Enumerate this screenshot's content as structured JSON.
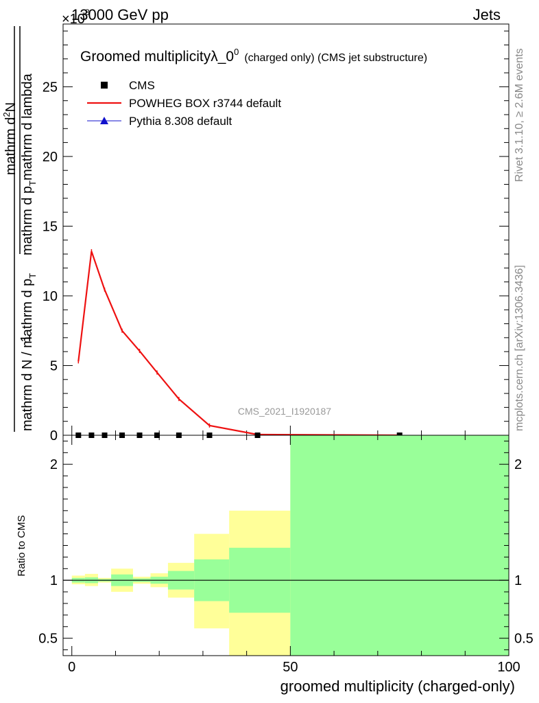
{
  "header": {
    "energy": "13000 GeV pp",
    "scale": "×10",
    "scale_exp": "-3",
    "category": "Jets",
    "rivet": "Rivet 3.1.10, ≥ 2.6M events",
    "site": "mcplots.cern.ch [arXiv:1306.3436]",
    "watermark": "CMS_2021_I1920187"
  },
  "chart_data": [
    {
      "type": "line",
      "title_main": "Groomed multiplicity",
      "title_lambda": "λ_0",
      "title_sup": "0",
      "title_suffix": "(charged only) (CMS jet substructure)",
      "ylabel": {
        "numerator": "1",
        "denominator": "mathrm d N / mathrm d p",
        "denominator_sub": "T",
        "numerator2": "mathrm d",
        "numerator2_sup": "2",
        "numerator2_tail": "N",
        "denominator2": "mathrm d p",
        "denominator2_sub": "T",
        "denominator2_tail": "mathrm d lambda"
      },
      "xlim": [
        -2,
        100
      ],
      "ylim": [
        0,
        29.5
      ],
      "yticks": [
        0,
        5,
        10,
        15,
        20,
        25
      ],
      "yticklabels": [
        "0",
        "5",
        "10",
        "15",
        "20",
        "25"
      ],
      "legend": [
        {
          "name": "CMS",
          "marker": "square",
          "color": "#000000"
        },
        {
          "name": "POWHEG BOX r3744 default",
          "marker": "line",
          "color": "#ee1111"
        },
        {
          "name": "Pythia 8.308 default",
          "marker": "triangle",
          "color": "#1111cc"
        }
      ],
      "series": [
        {
          "name": "POWHEG BOX r3744 default",
          "color": "#ee1111",
          "x": [
            1.5,
            4.5,
            7.5,
            11.5,
            15.5,
            19.5,
            24.5,
            31.5,
            42.5,
            75
          ],
          "values": [
            5.3,
            13.2,
            10.45,
            7.5,
            6.05,
            4.5,
            2.6,
            0.7,
            0.05,
            0.0
          ]
        },
        {
          "name": "CMS",
          "color": "#000000",
          "x": [
            1.5,
            4.5,
            7.5,
            11.5,
            15.5,
            19.5,
            24.5,
            31.5,
            42.5,
            75
          ],
          "values": [
            0,
            0,
            0,
            0,
            0,
            0,
            0,
            0,
            0,
            0
          ]
        }
      ]
    },
    {
      "type": "area",
      "ylabel": "Ratio to CMS",
      "xlabel": "groomed multiplicity (charged-only)",
      "xlim": [
        -2,
        100
      ],
      "ylim": [
        0.35,
        2.25
      ],
      "xticks": [
        0,
        50,
        100
      ],
      "xticklabels": [
        "0",
        "50",
        "100"
      ],
      "yticks": [
        0.5,
        1,
        2
      ],
      "yticklabels": [
        "0.5",
        "1",
        "2"
      ],
      "reference_line": 1,
      "bins": [
        {
          "lo": 0,
          "hi": 3,
          "yellow": [
            0.965,
            1.04
          ],
          "green": [
            0.98,
            1.02
          ]
        },
        {
          "lo": 3,
          "hi": 6,
          "yellow": [
            0.95,
            1.055
          ],
          "green": [
            0.975,
            1.025
          ]
        },
        {
          "lo": 6,
          "hi": 9,
          "yellow": [
            0.98,
            1.02
          ],
          "green": [
            0.99,
            1.01
          ]
        },
        {
          "lo": 9,
          "hi": 14,
          "yellow": [
            0.9,
            1.1
          ],
          "green": [
            0.95,
            1.05
          ]
        },
        {
          "lo": 14,
          "hi": 18,
          "yellow": [
            0.97,
            1.03
          ],
          "green": [
            0.985,
            1.015
          ]
        },
        {
          "lo": 18,
          "hi": 22,
          "yellow": [
            0.94,
            1.06
          ],
          "green": [
            0.97,
            1.03
          ]
        },
        {
          "lo": 22,
          "hi": 28,
          "yellow": [
            0.85,
            1.15
          ],
          "green": [
            0.92,
            1.08
          ]
        },
        {
          "lo": 28,
          "hi": 36,
          "yellow": [
            0.585,
            1.4
          ],
          "green": [
            0.82,
            1.18
          ]
        },
        {
          "lo": 36,
          "hi": 50,
          "yellow": [
            0.35,
            1.6
          ],
          "green": [
            0.72,
            1.28
          ]
        },
        {
          "lo": 50,
          "hi": 100,
          "yellow": [
            0.35,
            2.25
          ],
          "green": [
            0.35,
            2.25
          ]
        }
      ]
    }
  ],
  "colors": {
    "yellow_band": "#ffff99",
    "green_band": "#99ff99"
  }
}
